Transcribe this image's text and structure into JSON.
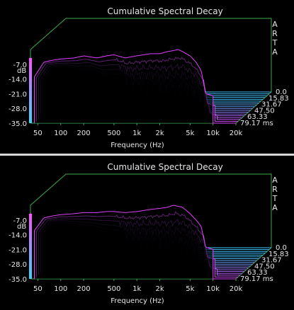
{
  "chart_data": [
    {
      "type": "area",
      "subtype": "waterfall-3d",
      "title": "Cumulative Spectral Decay",
      "xlabel": "Frequency (Hz)",
      "ylabel": "dB",
      "zlabel": "ms",
      "watermark": "ARTA",
      "x_scale": "log",
      "xlim": [
        40,
        20000
      ],
      "ylim": [
        -35,
        0
      ],
      "x_ticks": [
        "50",
        "100",
        "200",
        "500",
        "1k",
        "2k",
        "5k",
        "10k",
        "20k"
      ],
      "x_tick_values": [
        50,
        100,
        200,
        500,
        1000,
        2000,
        5000,
        10000,
        20000
      ],
      "y_ticks": [
        "-7.0",
        "-14.0",
        "-21.0",
        "-28.0",
        "-35.0"
      ],
      "y_tick_values": [
        -7,
        -14,
        -21,
        -28,
        -35
      ],
      "z_ticks": [
        "0.0",
        "15.83",
        "31.67",
        "47.50",
        "63.33",
        "79.17 ms"
      ],
      "z_tick_values": [
        0,
        15.83,
        31.67,
        47.5,
        63.33,
        79.17
      ],
      "grid": false,
      "colors": {
        "front": "#e040fb",
        "rear": "#40c4ff",
        "frame": "#3fa94d",
        "bar_top": "#ff4fff",
        "bar_bottom": "#3ad6ff"
      },
      "slice_count": 18,
      "front_slice_response_db": {
        "x": [
          45,
          60,
          80,
          100,
          150,
          200,
          300,
          400,
          500,
          700,
          1000,
          1500,
          2000,
          2500,
          3000,
          3500,
          4000,
          5000,
          6000,
          7000,
          8000,
          10000
        ],
        "y": [
          -13,
          -6,
          -5,
          -4.5,
          -4,
          -3,
          -4,
          -3,
          -2.5,
          -4,
          -3,
          -2,
          -2,
          -1,
          -0.5,
          0,
          -1,
          -3,
          -6,
          -10,
          -21,
          -22
        ]
      }
    },
    {
      "type": "area",
      "subtype": "waterfall-3d",
      "title": "Cumulative Spectral Decay",
      "xlabel": "Frequency (Hz)",
      "ylabel": "dB",
      "zlabel": "ms",
      "watermark": "ARTA",
      "x_scale": "log",
      "xlim": [
        40,
        20000
      ],
      "ylim": [
        -35,
        0
      ],
      "x_ticks": [
        "50",
        "100",
        "200",
        "500",
        "1k",
        "2k",
        "5k",
        "10k",
        "20k"
      ],
      "x_tick_values": [
        50,
        100,
        200,
        500,
        1000,
        2000,
        5000,
        10000,
        20000
      ],
      "y_ticks": [
        "-7.0",
        "-14.0",
        "-21.0",
        "-28.0",
        "-35.0"
      ],
      "y_tick_values": [
        -7,
        -14,
        -21,
        -28,
        -35
      ],
      "z_ticks": [
        "0.0",
        "15.83",
        "31.67",
        "47.50",
        "63.33",
        "79.17 ms"
      ],
      "z_tick_values": [
        0,
        15.83,
        31.67,
        47.5,
        63.33,
        79.17
      ],
      "grid": false,
      "colors": {
        "front": "#e040fb",
        "rear": "#40c4ff",
        "frame": "#3fa94d",
        "bar_top": "#ff4fff",
        "bar_bottom": "#3ad6ff"
      },
      "slice_count": 18,
      "front_slice_response_db": {
        "x": [
          45,
          60,
          80,
          100,
          150,
          200,
          300,
          400,
          500,
          700,
          1000,
          1500,
          2000,
          2500,
          3000,
          3500,
          4000,
          5000,
          6000,
          7000,
          8000,
          10000
        ],
        "y": [
          -12,
          -6,
          -5,
          -4.5,
          -4,
          -3.5,
          -3.5,
          -3,
          -3,
          -3.5,
          -3,
          -2,
          -1.5,
          -1,
          0,
          -0.5,
          -1,
          -4,
          -7,
          -10,
          -20,
          -21
        ]
      }
    }
  ]
}
